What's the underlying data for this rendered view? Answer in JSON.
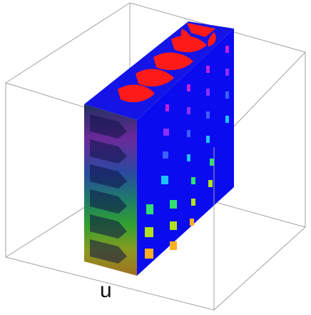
{
  "figure": {
    "axis_label": "u",
    "colors": {
      "bounding_box_stroke": "#9a9a9a",
      "slab_front": "#0b0bf0",
      "slab_top": "#1414e6",
      "slab_side_dark": "#151a55",
      "pattern_red": "#ff1a1a",
      "cell_gradient": [
        "#c020e0",
        "#8a30ff",
        "#3a60ff",
        "#20c0ff",
        "#30e070",
        "#b0e020",
        "#ffb020"
      ]
    }
  }
}
